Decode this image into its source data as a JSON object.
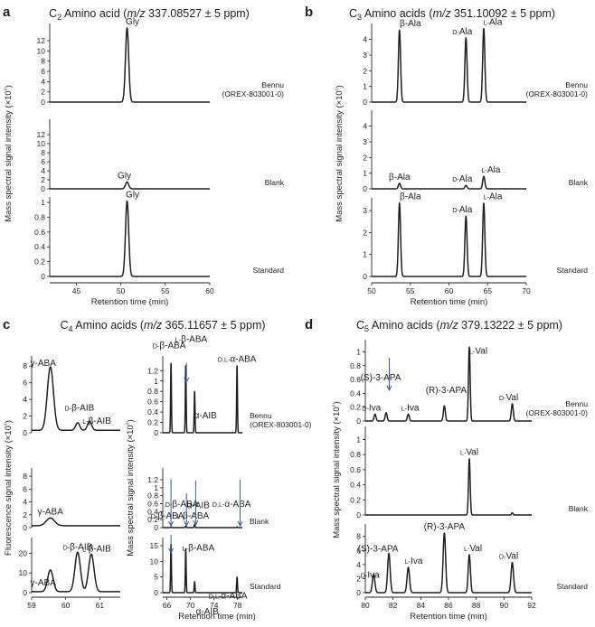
{
  "colors": {
    "ink": "#231f20",
    "arrow": "#3a5e93",
    "background": "#ffffff"
  },
  "panels": [
    {
      "letter": "a",
      "title": "C2 Amino acid (m/z 337.08527 ± 5 ppm)"
    },
    {
      "letter": "b",
      "title": "C3 Amino acids (m/z 351.10092 ± 5 ppm)"
    },
    {
      "letter": "c",
      "title": "C4 Amino acids (m/z 365.11657 ± 5 ppm)"
    },
    {
      "letter": "d",
      "title": "C5 Amino acids (m/z 379.13222 ± 5 ppm)"
    }
  ],
  "sample_labels": {
    "bennu_line1": "Bennu",
    "bennu_line2": "(OREX-803001-0)",
    "blank": "Blank",
    "standard": "Standard"
  },
  "chart_data": [
    {
      "id": "a",
      "type": "line",
      "xlabel": "Retention time (min)",
      "ylabel": "Mass spectral signal intensity (×10⁶)",
      "xlim": [
        42,
        60
      ],
      "xticks": [
        45,
        50,
        55,
        60
      ],
      "subplots": [
        {
          "sample": "Bennu (OREX-803001-0)",
          "ylim": [
            0,
            15
          ],
          "yticks": [
            0,
            2,
            4,
            6,
            8,
            10,
            12
          ],
          "peaks": [
            {
              "label": "Gly",
              "x": 50.7,
              "height": 14.5,
              "width": 0.18
            }
          ]
        },
        {
          "sample": "Blank",
          "ylim": [
            0,
            15
          ],
          "yticks": [
            0,
            2,
            4,
            6,
            8,
            10,
            12
          ],
          "peaks": [
            {
              "label": "Gly",
              "x": 50.7,
              "height": 1.5,
              "width": 0.18
            }
          ]
        },
        {
          "sample": "Standard",
          "ylim": [
            0,
            1.05
          ],
          "yticks": [
            0,
            0.2,
            0.4,
            0.6,
            0.8,
            1.0
          ],
          "peaks": [
            {
              "label": "Gly",
              "x": 50.7,
              "height": 1.02,
              "width": 0.18
            }
          ]
        }
      ]
    },
    {
      "id": "b",
      "type": "line",
      "xlabel": "Retention time (min)",
      "ylabel": "Mass spectral signal intensity (×10⁶)",
      "xlim": [
        50,
        70
      ],
      "xticks": [
        50,
        55,
        60,
        65,
        70
      ],
      "subplots": [
        {
          "sample": "Bennu (OREX-803001-0)",
          "ylim": [
            0,
            4.9
          ],
          "yticks": [
            0,
            1,
            2,
            3,
            4
          ],
          "peaks": [
            {
              "label": "β-Ala",
              "x": 53.6,
              "height": 4.6,
              "width": 0.14
            },
            {
              "label": "D-Ala",
              "x": 62.2,
              "height": 4.1,
              "width": 0.14
            },
            {
              "label": "L-Ala",
              "x": 64.5,
              "height": 4.7,
              "width": 0.14
            }
          ]
        },
        {
          "sample": "Blank",
          "ylim": [
            0,
            4.9
          ],
          "yticks": [
            0,
            1,
            2,
            3,
            4
          ],
          "peaks": [
            {
              "label": "β-Ala",
              "x": 53.6,
              "height": 0.35,
              "width": 0.14
            },
            {
              "label": "D-Ala",
              "x": 62.2,
              "height": 0.22,
              "width": 0.14
            },
            {
              "label": "L-Ala",
              "x": 64.5,
              "height": 0.8,
              "width": 0.14
            }
          ]
        },
        {
          "sample": "Standard",
          "ylim": [
            0,
            3.5
          ],
          "yticks": [
            0,
            1,
            2,
            3
          ],
          "peaks": [
            {
              "label": "β-Ala",
              "x": 53.6,
              "height": 3.35,
              "width": 0.14
            },
            {
              "label": "D-Ala",
              "x": 62.2,
              "height": 2.75,
              "width": 0.14
            },
            {
              "label": "L-Ala",
              "x": 64.5,
              "height": 3.35,
              "width": 0.14
            }
          ]
        }
      ]
    },
    {
      "id": "c-fluorescence",
      "type": "line",
      "xlabel": "",
      "ylabel": "Fluorescence signal intensity (×10⁶)",
      "xlim": [
        59,
        61.6
      ],
      "xticks": [
        59,
        60,
        61
      ],
      "subplots": [
        {
          "sample": "Bennu (OREX-803001-0)",
          "ylim": [
            0,
            9
          ],
          "yticks": [
            0,
            2,
            4,
            6,
            8
          ],
          "baseline": 0.3,
          "peaks": [
            {
              "label": "γ-ABA",
              "x": 59.55,
              "height": 7.6,
              "width": 0.09
            },
            {
              "label": "D-β-AIB",
              "x": 60.35,
              "height": 0.9,
              "width": 0.06
            },
            {
              "label": "L-β-AIB",
              "x": 60.7,
              "height": 1.1,
              "width": 0.06
            }
          ]
        },
        {
          "sample": "Blank",
          "ylim": [
            0,
            9
          ],
          "yticks": [
            0,
            2,
            4,
            6,
            8
          ],
          "baseline": 0.3,
          "peaks": [
            {
              "label": "γ-ABA",
              "x": 59.55,
              "height": 1.2,
              "width": 0.12
            }
          ]
        },
        {
          "sample": "Standard",
          "ylim": [
            0,
            27
          ],
          "yticks": [
            0,
            10,
            20
          ],
          "baseline": 0.5,
          "peaks": [
            {
              "label": "γ-ABA",
              "x": 59.55,
              "height": 11,
              "width": 0.08
            },
            {
              "label": "D-β-AIB",
              "x": 60.35,
              "height": 20,
              "width": 0.08
            },
            {
              "label": "L-β-AIB",
              "x": 60.75,
              "height": 19,
              "width": 0.08
            }
          ]
        }
      ]
    },
    {
      "id": "c-mass",
      "type": "line",
      "xlabel": "Retention time (min)",
      "ylabel": "Mass spectral signal intensity (×10⁶)",
      "xlim": [
        65.3,
        78.8
      ],
      "xticks": [
        66,
        70,
        74,
        78
      ],
      "xticklabels": [
        "66",
        "70",
        "74",
        "78"
      ],
      "subplots": [
        {
          "sample": "Bennu (OREX-803001-0)",
          "ylim": [
            0,
            1.45
          ],
          "yticks": [
            0,
            0.2,
            0.4,
            0.6,
            0.8,
            1.0,
            1.2
          ],
          "peaks": [
            {
              "label": "D-β-ABA",
              "x": 66.7,
              "height": 1.35,
              "width": 0.07
            },
            {
              "label": "L-β-ABA",
              "x": 69.2,
              "height": 1.3,
              "width": 0.07
            },
            {
              "label": "α-AIB",
              "x": 70.7,
              "height": 0.8,
              "width": 0.07
            },
            {
              "label": "D,L-α-ABA",
              "x": 77.9,
              "height": 1.3,
              "width": 0.07
            }
          ]
        },
        {
          "sample": "Blank",
          "ylim": [
            0,
            1.45
          ],
          "yticks": [
            0,
            0.2,
            0.4,
            0.6,
            0.8,
            1.0,
            1.2
          ],
          "peaks": [
            {
              "label": "D-β-ABA",
              "x": 66.7,
              "height": 0.02,
              "width": 0.07
            },
            {
              "label": "L-β-ABA",
              "x": 69.2,
              "height": 0.04,
              "width": 0.07
            },
            {
              "label": "α-AIB",
              "x": 70.7,
              "height": 0.08,
              "width": 0.07
            },
            {
              "label": "D,L-α-ABA",
              "x": 77.9,
              "height": 0.02,
              "width": 0.07
            }
          ]
        },
        {
          "sample": "Standard",
          "ylim": [
            0,
            17
          ],
          "yticks": [
            0,
            5,
            10,
            15
          ],
          "peaks": [
            {
              "label": "D-β-ABA",
              "x": 66.7,
              "height": 15.5,
              "width": 0.07
            },
            {
              "label": "L-β-ABA",
              "x": 69.2,
              "height": 14,
              "width": 0.07
            },
            {
              "label": "α-AIB",
              "x": 70.7,
              "height": 3.5,
              "width": 0.07
            },
            {
              "label": "D,L-α-ABA",
              "x": 77.9,
              "height": 5,
              "width": 0.07
            }
          ]
        }
      ]
    },
    {
      "id": "d",
      "type": "line",
      "xlabel": "Retention time (min)",
      "ylabel": "Mass spectral signal intensity (×10⁶)",
      "xlim": [
        80,
        92
      ],
      "xticks": [
        80,
        82,
        84,
        86,
        88,
        90,
        92
      ],
      "subplots": [
        {
          "sample": "Bennu (OREX-803001-0)",
          "ylim": [
            0,
            1.15
          ],
          "yticks": [
            0,
            0.2,
            0.4,
            0.6,
            0.8,
            1.0
          ],
          "peaks": [
            {
              "label": "D-Iva",
              "x": 80.7,
              "height": 0.1,
              "width": 0.07
            },
            {
              "label": "(S)-3-APA",
              "x": 81.5,
              "height": 0.12,
              "width": 0.07
            },
            {
              "label": "L-Iva",
              "x": 83.1,
              "height": 0.1,
              "width": 0.07
            },
            {
              "label": "(R)-3-APA",
              "x": 85.7,
              "height": 0.22,
              "width": 0.07
            },
            {
              "label": "L-Val",
              "x": 87.5,
              "height": 1.08,
              "width": 0.06
            },
            {
              "label": "D-Val",
              "x": 90.6,
              "height": 0.25,
              "width": 0.07
            }
          ]
        },
        {
          "sample": "Blank",
          "ylim": [
            0,
            1.15
          ],
          "yticks": [
            0,
            0.2,
            0.4,
            0.6,
            0.8,
            1.0
          ],
          "peaks": [
            {
              "label": "L-Val",
              "x": 87.5,
              "height": 0.75,
              "width": 0.06
            },
            {
              "label": "",
              "x": 90.6,
              "height": 0.03,
              "width": 0.05
            }
          ]
        },
        {
          "sample": "Standard",
          "ylim": [
            0,
            9.5
          ],
          "yticks": [
            0,
            2,
            4,
            6,
            8
          ],
          "peaks": [
            {
              "label": "D-Iva",
              "x": 80.6,
              "height": 2.6,
              "width": 0.09
            },
            {
              "label": "(S)-3-APA",
              "x": 81.7,
              "height": 5.6,
              "width": 0.09
            },
            {
              "label": "L-Iva",
              "x": 83.1,
              "height": 3.6,
              "width": 0.09
            },
            {
              "label": "(R)-3-APA",
              "x": 85.7,
              "height": 8.5,
              "width": 0.09
            },
            {
              "label": "L-Val",
              "x": 87.5,
              "height": 5.4,
              "width": 0.08
            },
            {
              "label": "D-Val",
              "x": 90.6,
              "height": 4.3,
              "width": 0.09
            }
          ]
        }
      ]
    }
  ]
}
